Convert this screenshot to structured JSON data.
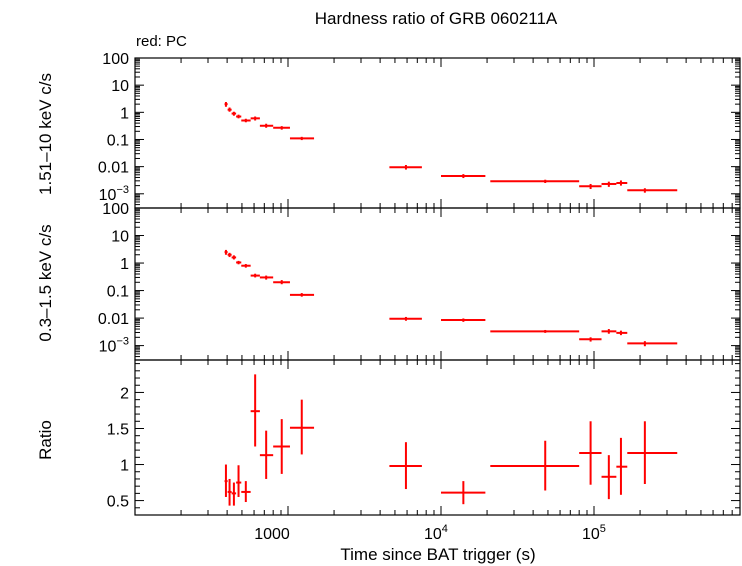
{
  "header": {
    "title": "Hardness ratio of GRB 060211A",
    "legend": "red: PC"
  },
  "axes": {
    "x_label": "Time since BAT trigger (s)",
    "y_label_top": "1.51–10 keV c/s",
    "y_label_mid": "0.3–1.5 keV c/s",
    "y_label_bottom": "Ratio"
  },
  "colors": {
    "series": "#ff0000"
  },
  "chart_data": [
    {
      "type": "scatter",
      "title": "Hardness ratio of GRB 060211A",
      "ylabel": "1.51–10 keV c/s",
      "legend": "red: PC",
      "x_scale": "log",
      "y_scale": "log",
      "xlim": [
        100,
        900000
      ],
      "ylim": [
        0.0003,
        100
      ],
      "points": [
        {
          "x": 393,
          "xlo": 385,
          "xhi": 403,
          "y": 2.0,
          "ylo": 1.6,
          "yhi": 2.4
        },
        {
          "x": 415,
          "xlo": 403,
          "xhi": 428,
          "y": 1.25,
          "ylo": 1.05,
          "yhi": 1.5
        },
        {
          "x": 443,
          "xlo": 428,
          "xhi": 458,
          "y": 0.9,
          "ylo": 0.75,
          "yhi": 1.05
        },
        {
          "x": 475,
          "xlo": 458,
          "xhi": 495,
          "y": 0.7,
          "ylo": 0.6,
          "yhi": 0.82
        },
        {
          "x": 530,
          "xlo": 495,
          "xhi": 570,
          "y": 0.5,
          "ylo": 0.43,
          "yhi": 0.58
        },
        {
          "x": 610,
          "xlo": 570,
          "xhi": 655,
          "y": 0.6,
          "ylo": 0.5,
          "yhi": 0.7
        },
        {
          "x": 720,
          "xlo": 655,
          "xhi": 800,
          "y": 0.32,
          "ylo": 0.27,
          "yhi": 0.38
        },
        {
          "x": 910,
          "xlo": 800,
          "xhi": 1030,
          "y": 0.27,
          "ylo": 0.23,
          "yhi": 0.31
        },
        {
          "x": 1230,
          "xlo": 1030,
          "xhi": 1480,
          "y": 0.11,
          "ylo": 0.095,
          "yhi": 0.125
        },
        {
          "x": 5900,
          "xlo": 4600,
          "xhi": 7500,
          "y": 0.0095,
          "ylo": 0.0078,
          "yhi": 0.0115
        },
        {
          "x": 14000,
          "xlo": 10000,
          "xhi": 19500,
          "y": 0.0045,
          "ylo": 0.0038,
          "yhi": 0.0053
        },
        {
          "x": 48000,
          "xlo": 21000,
          "xhi": 80000,
          "y": 0.0029,
          "ylo": 0.0025,
          "yhi": 0.0033
        },
        {
          "x": 95000,
          "xlo": 80000,
          "xhi": 112000,
          "y": 0.0019,
          "ylo": 0.0015,
          "yhi": 0.0023
        },
        {
          "x": 125000,
          "xlo": 112000,
          "xhi": 140000,
          "y": 0.0023,
          "ylo": 0.0018,
          "yhi": 0.0028
        },
        {
          "x": 150000,
          "xlo": 140000,
          "xhi": 165000,
          "y": 0.0025,
          "ylo": 0.002,
          "yhi": 0.0031
        },
        {
          "x": 215000,
          "xlo": 165000,
          "xhi": 350000,
          "y": 0.00135,
          "ylo": 0.0011,
          "yhi": 0.0016
        }
      ]
    },
    {
      "type": "scatter",
      "ylabel": "0.3–1.5 keV c/s",
      "x_scale": "log",
      "y_scale": "log",
      "xlim": [
        100,
        900000
      ],
      "ylim": [
        0.0003,
        100
      ],
      "points": [
        {
          "x": 393,
          "xlo": 385,
          "xhi": 403,
          "y": 2.5,
          "ylo": 2.0,
          "yhi": 3.0
        },
        {
          "x": 415,
          "xlo": 403,
          "xhi": 428,
          "y": 2.0,
          "ylo": 1.65,
          "yhi": 2.35
        },
        {
          "x": 443,
          "xlo": 428,
          "xhi": 458,
          "y": 1.6,
          "ylo": 1.35,
          "yhi": 1.9
        },
        {
          "x": 475,
          "xlo": 458,
          "xhi": 495,
          "y": 1.05,
          "ylo": 0.9,
          "yhi": 1.2
        },
        {
          "x": 530,
          "xlo": 495,
          "xhi": 570,
          "y": 0.8,
          "ylo": 0.68,
          "yhi": 0.92
        },
        {
          "x": 610,
          "xlo": 570,
          "xhi": 655,
          "y": 0.35,
          "ylo": 0.3,
          "yhi": 0.41
        },
        {
          "x": 720,
          "xlo": 655,
          "xhi": 800,
          "y": 0.3,
          "ylo": 0.25,
          "yhi": 0.35
        },
        {
          "x": 910,
          "xlo": 800,
          "xhi": 1030,
          "y": 0.2,
          "ylo": 0.17,
          "yhi": 0.24
        },
        {
          "x": 1230,
          "xlo": 1030,
          "xhi": 1480,
          "y": 0.07,
          "ylo": 0.06,
          "yhi": 0.081
        },
        {
          "x": 5900,
          "xlo": 4600,
          "xhi": 7500,
          "y": 0.0095,
          "ylo": 0.008,
          "yhi": 0.011
        },
        {
          "x": 14000,
          "xlo": 10000,
          "xhi": 19500,
          "y": 0.0085,
          "ylo": 0.0073,
          "yhi": 0.0097
        },
        {
          "x": 48000,
          "xlo": 21000,
          "xhi": 80000,
          "y": 0.0033,
          "ylo": 0.0029,
          "yhi": 0.0037
        },
        {
          "x": 95000,
          "xlo": 80000,
          "xhi": 112000,
          "y": 0.0017,
          "ylo": 0.0014,
          "yhi": 0.002
        },
        {
          "x": 125000,
          "xlo": 112000,
          "xhi": 140000,
          "y": 0.0033,
          "ylo": 0.0027,
          "yhi": 0.004
        },
        {
          "x": 150000,
          "xlo": 140000,
          "xhi": 165000,
          "y": 0.0029,
          "ylo": 0.0024,
          "yhi": 0.0035
        },
        {
          "x": 215000,
          "xlo": 165000,
          "xhi": 350000,
          "y": 0.0012,
          "ylo": 0.00095,
          "yhi": 0.00145
        }
      ]
    },
    {
      "type": "scatter",
      "ylabel": "Ratio",
      "xlabel": "Time since BAT trigger (s)",
      "x_scale": "log",
      "y_scale": "linear",
      "xlim": [
        100,
        900000
      ],
      "ylim": [
        0.3,
        2.45
      ],
      "points": [
        {
          "x": 393,
          "xlo": 385,
          "xhi": 403,
          "y": 0.77,
          "ylo": 0.55,
          "yhi": 1.0
        },
        {
          "x": 415,
          "xlo": 403,
          "xhi": 428,
          "y": 0.62,
          "ylo": 0.43,
          "yhi": 0.8
        },
        {
          "x": 443,
          "xlo": 428,
          "xhi": 458,
          "y": 0.6,
          "ylo": 0.43,
          "yhi": 0.75
        },
        {
          "x": 475,
          "xlo": 458,
          "xhi": 495,
          "y": 0.75,
          "ylo": 0.55,
          "yhi": 0.99
        },
        {
          "x": 530,
          "xlo": 495,
          "xhi": 570,
          "y": 0.62,
          "ylo": 0.48,
          "yhi": 0.77
        },
        {
          "x": 610,
          "xlo": 570,
          "xhi": 655,
          "y": 1.74,
          "ylo": 1.25,
          "yhi": 2.25
        },
        {
          "x": 720,
          "xlo": 655,
          "xhi": 800,
          "y": 1.13,
          "ylo": 0.8,
          "yhi": 1.47
        },
        {
          "x": 910,
          "xlo": 800,
          "xhi": 1030,
          "y": 1.25,
          "ylo": 0.87,
          "yhi": 1.63
        },
        {
          "x": 1230,
          "xlo": 1030,
          "xhi": 1480,
          "y": 1.51,
          "ylo": 1.14,
          "yhi": 1.9
        },
        {
          "x": 5900,
          "xlo": 4600,
          "xhi": 7500,
          "y": 0.98,
          "ylo": 0.66,
          "yhi": 1.31
        },
        {
          "x": 14000,
          "xlo": 10000,
          "xhi": 19500,
          "y": 0.61,
          "ylo": 0.45,
          "yhi": 0.77
        },
        {
          "x": 48000,
          "xlo": 21000,
          "xhi": 80000,
          "y": 0.98,
          "ylo": 0.64,
          "yhi": 1.33
        },
        {
          "x": 95000,
          "xlo": 80000,
          "xhi": 112000,
          "y": 1.16,
          "ylo": 0.72,
          "yhi": 1.6
        },
        {
          "x": 125000,
          "xlo": 112000,
          "xhi": 140000,
          "y": 0.83,
          "ylo": 0.52,
          "yhi": 1.13
        },
        {
          "x": 150000,
          "xlo": 140000,
          "xhi": 165000,
          "y": 0.97,
          "ylo": 0.58,
          "yhi": 1.37
        },
        {
          "x": 215000,
          "xlo": 165000,
          "xhi": 350000,
          "y": 1.16,
          "ylo": 0.73,
          "yhi": 1.6
        }
      ]
    }
  ],
  "ticks": {
    "y_log": [
      "100",
      "10",
      "1",
      "0.1",
      "0.01"
    ],
    "y_log_sup": {
      "base": "10",
      "exp": "−3"
    },
    "y_ratio": [
      "2",
      "1.5",
      "1",
      "0.5"
    ],
    "x": {
      "thousand": "1000",
      "base": "10",
      "exp4": "4",
      "exp5": "5"
    }
  }
}
